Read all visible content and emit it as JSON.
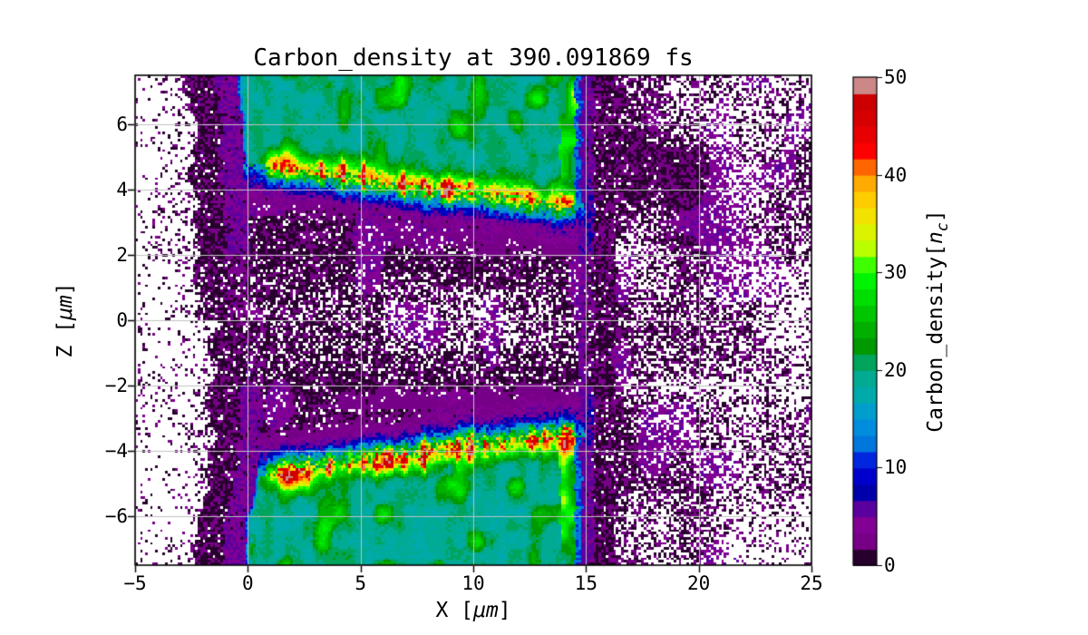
{
  "figure": {
    "background": "#ffffff",
    "text_color": "#000000",
    "grid_color": "#c2c2c2",
    "spine_color": "#000000"
  },
  "chart_data": {
    "type": "heatmap",
    "title": "Carbon_density at 390.091869 fs",
    "time_fs": 390.091869,
    "xlabel": "X [μm]",
    "ylabel": "Z [μm]",
    "x_range": [
      -5,
      25
    ],
    "z_range": [
      -7.5,
      7.5
    ],
    "x_ticks": [
      -5,
      0,
      5,
      10,
      15,
      20,
      25
    ],
    "x_tick_labels": [
      "−5",
      "0",
      "5",
      "10",
      "15",
      "20",
      "25"
    ],
    "z_ticks": [
      6,
      4,
      2,
      0,
      -2,
      -4,
      -6
    ],
    "z_tick_labels": [
      "6",
      "4",
      "2",
      "0",
      "−2",
      "−4",
      "−6"
    ],
    "grid": true,
    "colormap": "nipy_spectral",
    "color_levels": 30,
    "empty_bins_color": "#ffffff",
    "colorbar": {
      "label": "Carbon_density[n_c]",
      "range": [
        0,
        50
      ],
      "ticks": [
        0,
        10,
        20,
        30,
        40,
        50
      ],
      "tick_labels": [
        "0",
        "10",
        "20",
        "30",
        "40",
        "50"
      ]
    },
    "features": {
      "target_slab": {
        "x_extent": [
          0.0,
          15.0
        ],
        "bulk_density_nc": 19
      },
      "channel": {
        "z_halfwidth_um": 2.25,
        "density_nc_range": [
          0,
          6
        ]
      },
      "compression_ridges": [
        {
          "side": "upper",
          "x_extent": [
            0.7,
            14.3
          ],
          "z_start_um": 4.74,
          "z_end_um": 3.48,
          "peak_density_nc": [
            30,
            50
          ]
        },
        {
          "side": "lower",
          "x_extent": [
            0.7,
            14.3
          ],
          "z_start_um": -4.74,
          "z_end_um": -3.48,
          "peak_density_nc": [
            30,
            50
          ]
        }
      ],
      "expansion_fronts": {
        "left_black_band_density_nc": [
          1,
          3
        ],
        "left_purple_band_density_nc": [
          4,
          6
        ],
        "right_black_band_x": [
          15.3,
          16.4
        ],
        "right_purple_strip_x": [
          14.8,
          15.3
        ]
      },
      "vacuum_noise": "sparse 0-5 nc speckle outside target, denser on right side"
    }
  }
}
